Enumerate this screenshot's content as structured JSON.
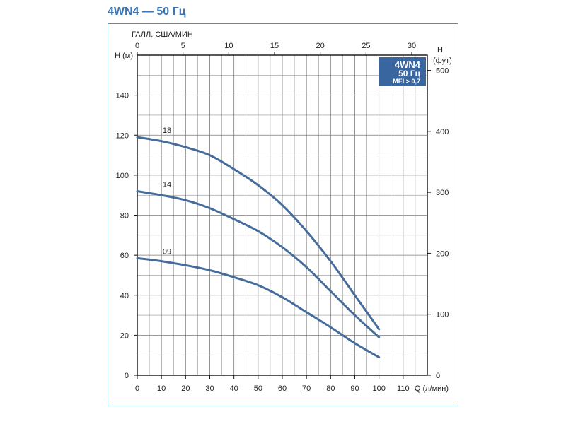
{
  "title": "4WN4 — 50 Гц",
  "badge": {
    "line1": "4WN4",
    "line2": "50 Гц",
    "line3": "MEI > 0,7",
    "color": "#3a66a0"
  },
  "colors": {
    "curve": "#466c9c",
    "grid": "#7a7a7a",
    "frame": "#5a86b8",
    "title": "#3b76b8"
  },
  "chart_data": {
    "type": "line",
    "title": "4WN4 — 50 Гц",
    "xlabel": "Q (л/мин)",
    "ylabel": "H (м)",
    "xlim": [
      0,
      120
    ],
    "ylim": [
      0,
      160
    ],
    "xticks": [
      0,
      10,
      20,
      30,
      40,
      50,
      60,
      70,
      80,
      90,
      100,
      110
    ],
    "yticks": [
      0,
      20,
      40,
      60,
      80,
      100,
      120,
      140
    ],
    "x2label": "ГАЛЛ. США/МИН",
    "x2ticks": [
      0,
      5,
      10,
      15,
      20,
      25,
      30
    ],
    "y2label": "H (фут)",
    "y2ticks": [
      0,
      100,
      200,
      300,
      400,
      500
    ],
    "grid": true,
    "series": [
      {
        "name": "18",
        "x": [
          0,
          10,
          20,
          30,
          40,
          50,
          60,
          70,
          80,
          90,
          100
        ],
        "y": [
          119,
          117,
          114,
          110,
          103,
          95,
          85,
          72,
          57,
          40,
          23
        ]
      },
      {
        "name": "14",
        "x": [
          0,
          10,
          20,
          30,
          40,
          50,
          60,
          70,
          80,
          90,
          100
        ],
        "y": [
          92,
          90,
          87.5,
          83.5,
          78,
          72,
          64,
          54,
          42,
          30,
          19
        ]
      },
      {
        "name": "09",
        "x": [
          0,
          10,
          20,
          30,
          40,
          50,
          60,
          70,
          80,
          90,
          100
        ],
        "y": [
          58.5,
          57,
          55,
          52.5,
          49,
          45,
          39,
          31.5,
          24,
          16,
          9
        ]
      }
    ]
  }
}
